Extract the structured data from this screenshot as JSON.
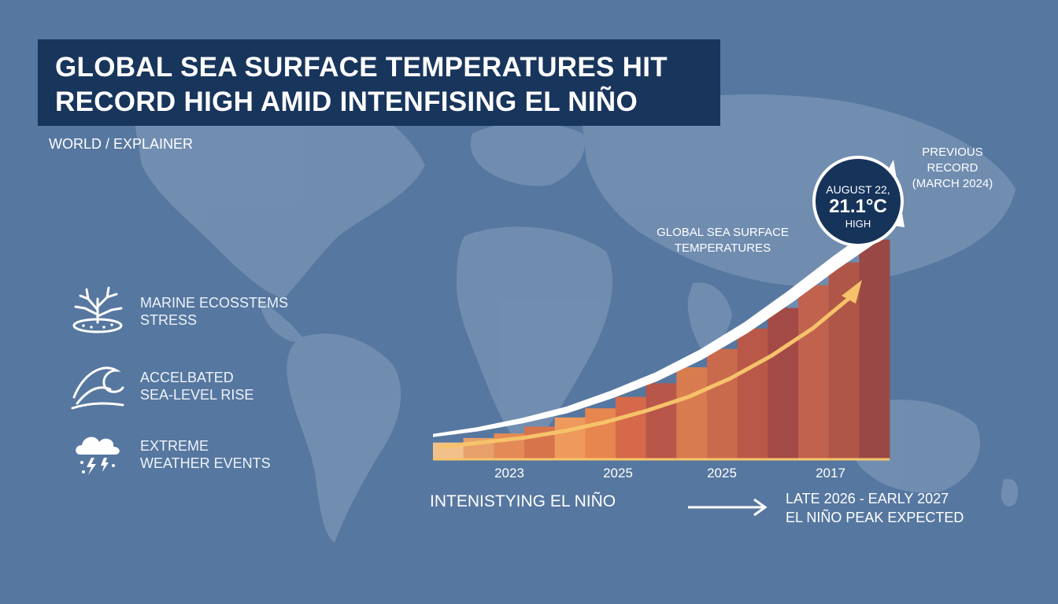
{
  "header": {
    "title_line1": "GLOBAL SEA SURFACE TEMPERATURES HIT",
    "title_line2": "RECORD HIGH AMID INTENFISING EL NIÑO",
    "kicker": "WORLD / EXPLAINER"
  },
  "impacts": [
    {
      "icon": "coral-icon",
      "line1": "MARINE ECOSSTEMS",
      "line2": "STRESS"
    },
    {
      "icon": "wave-icon",
      "line1": "ACCELBATED",
      "line2": "SEA-LEVEL RISE"
    },
    {
      "icon": "storm-cloud-icon",
      "line1": "EXTREME",
      "line2": "WEATHER EVENTS"
    }
  ],
  "chart_data": {
    "type": "area",
    "subtitle_line1": "GLOBAL SEA SURFACE",
    "subtitle_line2": "TEMPERATURES",
    "x_ticks": [
      "2023",
      "2025",
      "2025",
      "2017"
    ],
    "bar_values": [
      0.07,
      0.09,
      0.11,
      0.14,
      0.18,
      0.22,
      0.27,
      0.33,
      0.4,
      0.48,
      0.57,
      0.66,
      0.76,
      0.86,
      0.96
    ],
    "curve_values": [
      0.08,
      0.11,
      0.15,
      0.2,
      0.27,
      0.35,
      0.45,
      0.57,
      0.71,
      0.86,
      1.0
    ],
    "inner_trend_values": [
      0.03,
      0.05,
      0.07,
      0.1,
      0.14,
      0.19,
      0.25,
      0.33,
      0.43,
      0.55,
      0.7
    ],
    "colors": {
      "bars": [
        "#f2c08a",
        "#e8a06a",
        "#e38a56",
        "#d7744c",
        "#ed9a5c",
        "#e8864f",
        "#d5694a",
        "#b9564a",
        "#d87c50",
        "#ca6a4c",
        "#b95849",
        "#a34a47",
        "#c0624e",
        "#b05649",
        "#9a4845"
      ],
      "baseline": "#f7c56a",
      "curve": "#ffffff",
      "inner_trend": "#f6c26a",
      "badge": "#16335a"
    },
    "record": {
      "date": "AUGUST 22,",
      "value": "21.1°C",
      "label": "HIGH",
      "previous_line1": "PREVIOUS RECORD",
      "previous_line2": "(MARCH 2024)"
    }
  },
  "footer": {
    "elnino": "INTENISTYING EL NIÑO",
    "peak_line1": "LATE 2026 - EARLY 2027",
    "peak_line2": "EL NIÑO PEAK EXPECTED"
  }
}
